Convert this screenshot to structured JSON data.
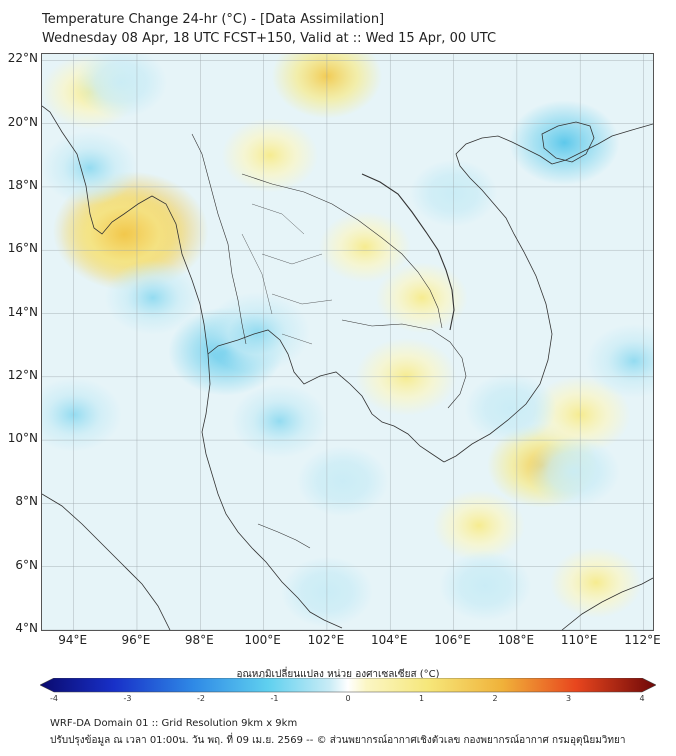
{
  "title_line1": "Temperature Change 24-hr (°C) - [Data Assimilation]",
  "title_line2": "Wednesday 08 Apr, 18 UTC FCST+150, Valid at :: Wed 15 Apr, 00 UTC",
  "map": {
    "lon_range": [
      93,
      112.3
    ],
    "lat_range": [
      4,
      22.2
    ],
    "lat_ticks": [
      {
        "value": 22,
        "label": "22°N"
      },
      {
        "value": 20,
        "label": "20°N"
      },
      {
        "value": 18,
        "label": "18°N"
      },
      {
        "value": 16,
        "label": "16°N"
      },
      {
        "value": 14,
        "label": "14°N"
      },
      {
        "value": 12,
        "label": "12°N"
      },
      {
        "value": 10,
        "label": "10°N"
      },
      {
        "value": 8,
        "label": "8°N"
      },
      {
        "value": 6,
        "label": "6°N"
      },
      {
        "value": 4,
        "label": "4°N"
      }
    ],
    "lon_ticks": [
      {
        "value": 94,
        "label": "94°E"
      },
      {
        "value": 96,
        "label": "96°E"
      },
      {
        "value": 98,
        "label": "98°E"
      },
      {
        "value": 100,
        "label": "100°E"
      },
      {
        "value": 102,
        "label": "102°E"
      },
      {
        "value": 104,
        "label": "104°E"
      },
      {
        "value": 106,
        "label": "106°E"
      },
      {
        "value": 108,
        "label": "108°E"
      },
      {
        "value": 110,
        "label": "110°E"
      },
      {
        "value": 112,
        "label": "112°E"
      }
    ],
    "colors": {
      "background": "#e6f4f8",
      "warm_light": "#fbf6c4",
      "warm": "#f7eb8a",
      "warm_strong": "#f2c94c",
      "hot": "#eea430",
      "cool_light": "#c9ecf6",
      "cool": "#8fdaf0",
      "cool_strong": "#56c6ea",
      "coast": "#333333"
    },
    "anomalies": [
      {
        "lon": 95.8,
        "lat": 16.6,
        "value": 1.8
      },
      {
        "lon": 95.6,
        "lat": 16.5,
        "value": 1.2
      },
      {
        "lon": 102.0,
        "lat": 21.5,
        "value": 0.8
      },
      {
        "lon": 100.2,
        "lat": 19.0,
        "value": 0.5
      },
      {
        "lon": 94.5,
        "lat": 21.0,
        "value": 0.5
      },
      {
        "lon": 104.5,
        "lat": 12.0,
        "value": 0.6
      },
      {
        "lon": 108.8,
        "lat": 9.2,
        "value": 0.8
      },
      {
        "lon": 110.0,
        "lat": 10.8,
        "value": 0.6
      },
      {
        "lon": 103.2,
        "lat": 16.1,
        "value": 0.4
      },
      {
        "lon": 105.0,
        "lat": 14.5,
        "value": 0.4
      },
      {
        "lon": 106.8,
        "lat": 7.3,
        "value": 0.4
      },
      {
        "lon": 110.5,
        "lat": 5.5,
        "value": 0.4
      },
      {
        "lon": 98.8,
        "lat": 12.8,
        "value": -0.9
      },
      {
        "lon": 99.8,
        "lat": 13.4,
        "value": -0.7
      },
      {
        "lon": 109.5,
        "lat": 19.4,
        "value": -0.8
      },
      {
        "lon": 94.0,
        "lat": 10.8,
        "value": -0.5
      },
      {
        "lon": 96.5,
        "lat": 14.5,
        "value": -0.5
      },
      {
        "lon": 100.5,
        "lat": 10.6,
        "value": -0.5
      },
      {
        "lon": 94.5,
        "lat": 18.6,
        "value": -0.5
      },
      {
        "lon": 95.5,
        "lat": 21.3,
        "value": -0.4
      },
      {
        "lon": 107.0,
        "lat": 5.4,
        "value": -0.4
      },
      {
        "lon": 109.8,
        "lat": 9.0,
        "value": -0.4
      },
      {
        "lon": 107.8,
        "lat": 11.0,
        "value": -0.4
      },
      {
        "lon": 102.5,
        "lat": 8.7,
        "value": -0.4
      },
      {
        "lon": 111.7,
        "lat": 12.5,
        "value": -0.5
      },
      {
        "lon": 102.0,
        "lat": 5.2,
        "value": -0.4
      },
      {
        "lon": 106.0,
        "lat": 17.8,
        "value": -0.3
      }
    ]
  },
  "colorbar": {
    "title": "อุณหภูมิเปลี่ยนแปลง หน่วย องศาเซลเซียส (°C)",
    "min": -4,
    "max": 4,
    "ticks": [
      "-4",
      "-3",
      "-2",
      "-1",
      "0",
      "1",
      "2",
      "3",
      "4"
    ]
  },
  "footer_line1": "WRF-DA Domain 01 :: Grid Resolution 9km x 9km",
  "footer_line2": "ปรับปรุงข้อมูล ณ เวลา 01:00น. วัน พฤ. ที่ 09 เม.ย. 2569 -- © ส่วนพยากรณ์อากาศเชิงตัวเลข กองพยากรณ์อากาศ กรมอุตุนิยมวิทยา"
}
